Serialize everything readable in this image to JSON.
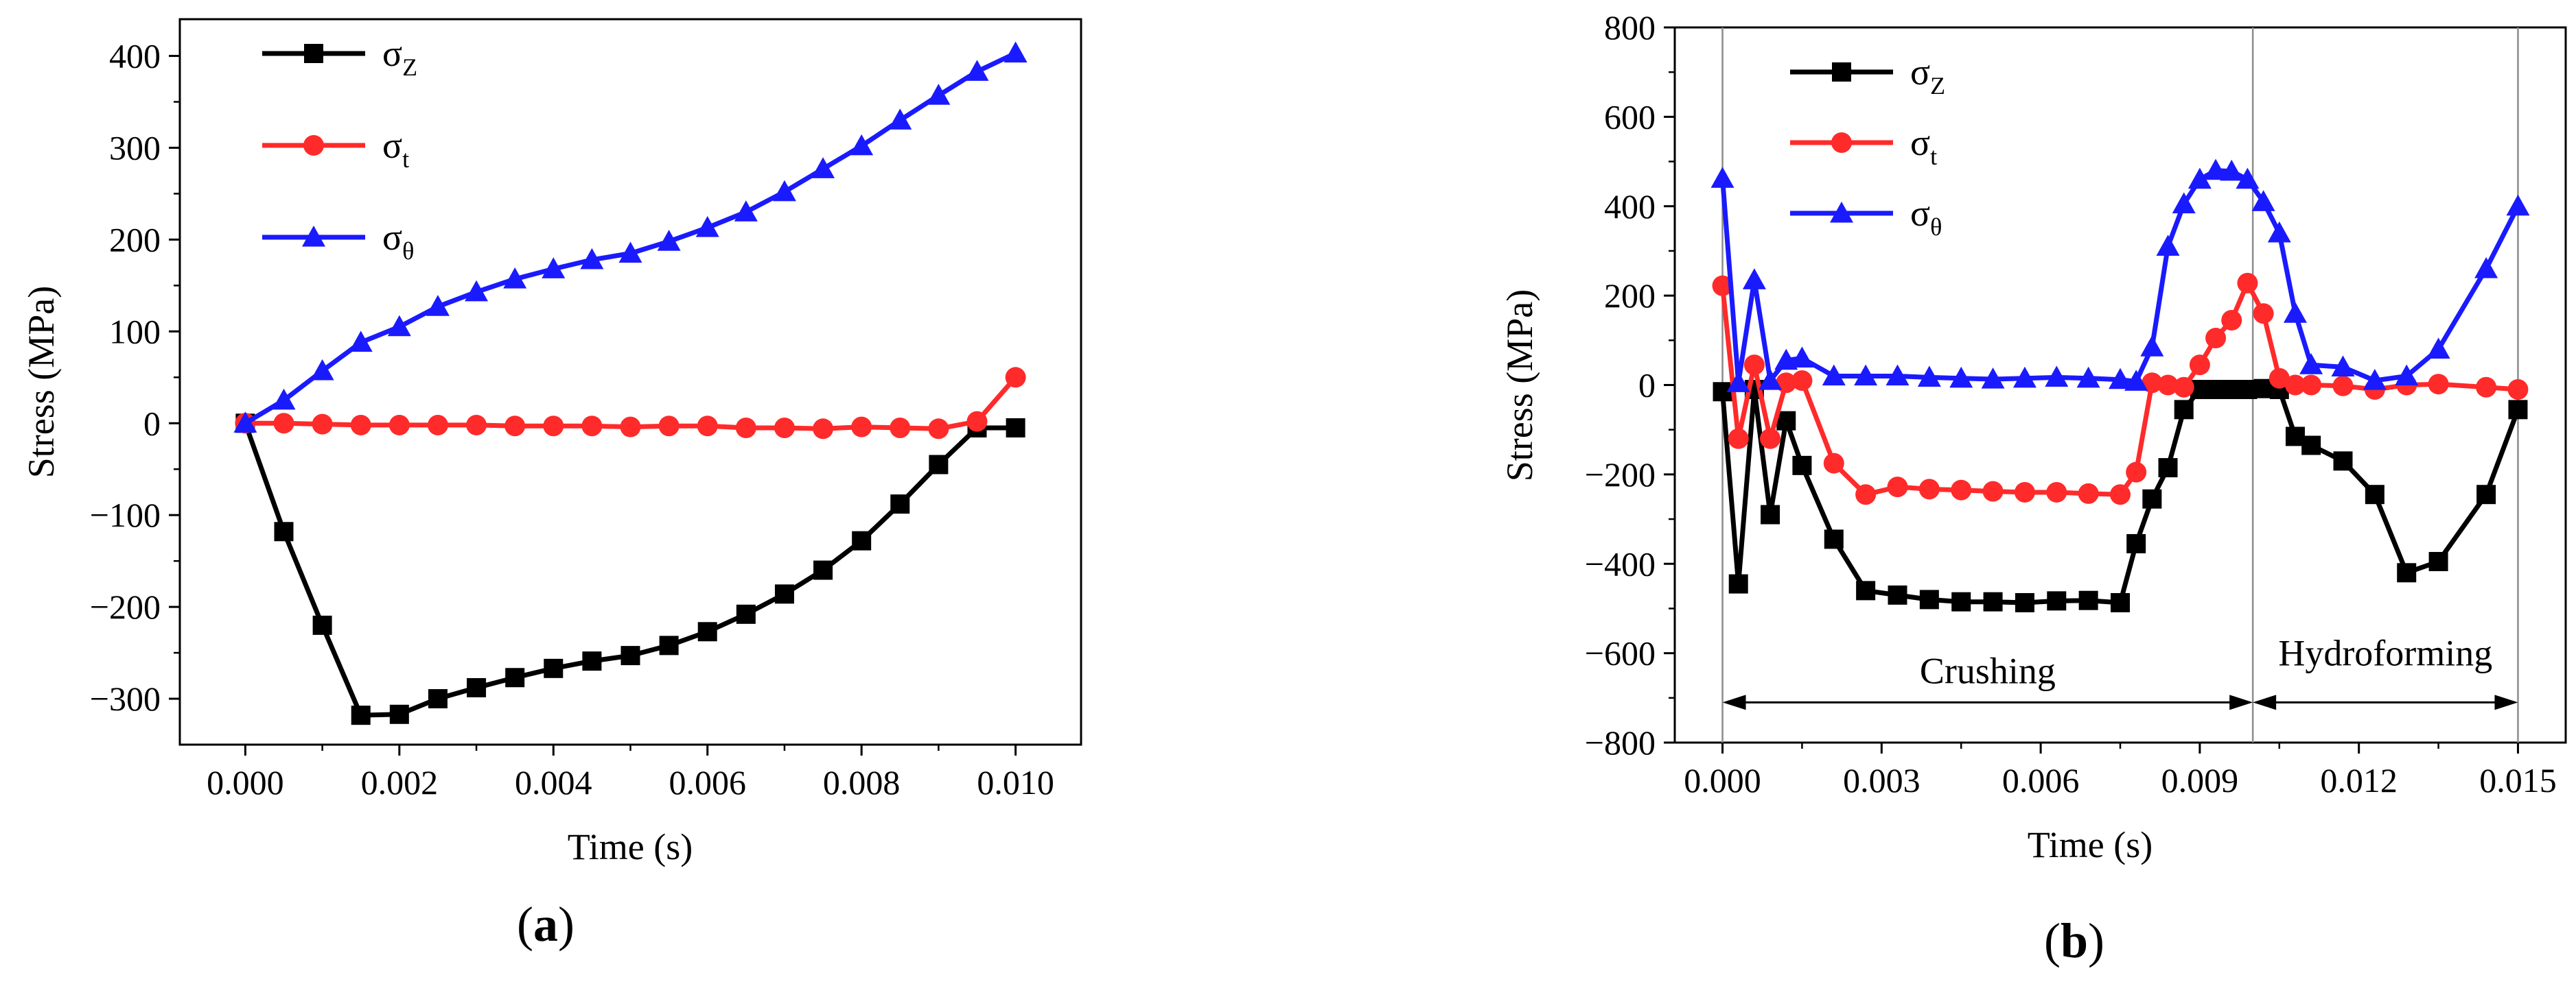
{
  "colors": {
    "sigma_z": "#000000",
    "sigma_t": "#ff2a2a",
    "sigma_theta": "#1a1aff",
    "axis": "#000000",
    "divider": "#8c8c8c"
  },
  "chart_data": [
    {
      "type": "line",
      "panel_label": "(a)",
      "panel_letter": "a",
      "xlabel": "Time (s)",
      "ylabel": "Stress (MPa)",
      "xlim": [
        -0.00085,
        0.01085
      ],
      "ylim": [
        -350,
        440
      ],
      "xticks": [
        0.0,
        0.002,
        0.004,
        0.006,
        0.008,
        0.01
      ],
      "xtick_labels": [
        "0.000",
        "0.002",
        "0.004",
        "0.006",
        "0.008",
        "0.010"
      ],
      "yticks": [
        -300,
        -200,
        -100,
        0,
        100,
        200,
        300,
        400
      ],
      "ytick_labels": [
        "−300",
        "−200",
        "−100",
        "0",
        "100",
        "200",
        "300",
        "400"
      ],
      "legend": [
        {
          "base": "σ",
          "sub": "Z",
          "series": "sigma_z"
        },
        {
          "base": "σ",
          "sub": "t",
          "series": "sigma_t"
        },
        {
          "base": "σ",
          "sub": "θ",
          "series": "sigma_theta"
        }
      ],
      "x": [
        0.0,
        0.0005,
        0.001,
        0.0015,
        0.002,
        0.0025,
        0.003,
        0.0035,
        0.004,
        0.0045,
        0.005,
        0.0055,
        0.006,
        0.0065,
        0.007,
        0.0075,
        0.008,
        0.0085,
        0.009,
        0.0095,
        0.01
      ],
      "series": [
        {
          "name": "σZ",
          "key": "sigma_z",
          "marker": "square",
          "values": [
            0,
            -118,
            -220,
            -318,
            -317,
            -300,
            -288,
            -277,
            -267,
            -259,
            -253,
            -242,
            -227,
            -208,
            -186,
            -160,
            -128,
            -88,
            -45,
            -5,
            -5
          ]
        },
        {
          "name": "σt",
          "key": "sigma_t",
          "marker": "circle",
          "values": [
            0,
            0,
            -1,
            -2,
            -2,
            -2,
            -2,
            -3,
            -3,
            -3,
            -4,
            -3,
            -3,
            -5,
            -5,
            -6,
            -4,
            -5,
            -6,
            2,
            50
          ]
        },
        {
          "name": "σθ",
          "key": "sigma_theta",
          "marker": "triangle",
          "values": [
            0,
            25,
            57,
            88,
            105,
            127,
            143,
            157,
            168,
            178,
            185,
            198,
            213,
            230,
            252,
            277,
            302,
            330,
            357,
            383,
            403
          ]
        }
      ]
    },
    {
      "type": "line",
      "panel_label": "(b)",
      "panel_letter": "b",
      "xlabel": "Time (s)",
      "ylabel": "Stress (MPa)",
      "xlim": [
        -0.0009,
        0.0159
      ],
      "ylim": [
        -800,
        800
      ],
      "xticks": [
        0.0,
        0.003,
        0.006,
        0.009,
        0.012,
        0.015
      ],
      "xtick_labels": [
        "0.000",
        "0.003",
        "0.006",
        "0.009",
        "0.012",
        "0.015"
      ],
      "yticks": [
        -800,
        -600,
        -400,
        -200,
        0,
        200,
        400,
        600,
        800
      ],
      "ytick_labels": [
        "−800",
        "−600",
        "−400",
        "−200",
        "0",
        "200",
        "400",
        "600",
        "800"
      ],
      "dividers": [
        0.0,
        0.01,
        0.015
      ],
      "annotations": [
        {
          "text": "Crushing",
          "x_from": 0.0,
          "x_to": 0.01,
          "y": -710,
          "label_y": -640
        },
        {
          "text": "Hydroforming",
          "x_from": 0.01,
          "x_to": 0.015,
          "y": -710,
          "label_y": -600
        }
      ],
      "legend": [
        {
          "base": "σ",
          "sub": "Z",
          "series": "sigma_z"
        },
        {
          "base": "σ",
          "sub": "t",
          "series": "sigma_t"
        },
        {
          "base": "σ",
          "sub": "θ",
          "series": "sigma_theta"
        }
      ],
      "series": [
        {
          "name": "σZ",
          "key": "sigma_z",
          "marker": "square",
          "x": [
            0.0,
            0.0003,
            0.0006,
            0.0009,
            0.0012,
            0.0015,
            0.0021,
            0.0027,
            0.0033,
            0.0039,
            0.0045,
            0.0051,
            0.0057,
            0.0063,
            0.0069,
            0.0075,
            0.0078,
            0.0081,
            0.0084,
            0.0087,
            0.009,
            0.0093,
            0.0096,
            0.0099,
            0.0102,
            0.0105,
            0.0108,
            0.0111,
            0.0117,
            0.0123,
            0.0129,
            0.0135,
            0.0144,
            0.015
          ],
          "values": [
            -15,
            -445,
            -10,
            -290,
            -80,
            -180,
            -345,
            -460,
            -470,
            -480,
            -485,
            -485,
            -487,
            -483,
            -482,
            -487,
            -355,
            -255,
            -185,
            -55,
            -10,
            -10,
            -10,
            -10,
            -8,
            -10,
            -115,
            -135,
            -170,
            -245,
            -420,
            -395,
            -245,
            -55
          ]
        },
        {
          "name": "σt",
          "key": "sigma_t",
          "marker": "circle",
          "x": [
            0.0,
            0.0003,
            0.0006,
            0.0009,
            0.0012,
            0.0015,
            0.0021,
            0.0027,
            0.0033,
            0.0039,
            0.0045,
            0.0051,
            0.0057,
            0.0063,
            0.0069,
            0.0075,
            0.0078,
            0.0081,
            0.0084,
            0.0087,
            0.009,
            0.0093,
            0.0096,
            0.0099,
            0.0102,
            0.0105,
            0.0108,
            0.0111,
            0.0117,
            0.0123,
            0.0129,
            0.0135,
            0.0144,
            0.015
          ],
          "values": [
            222,
            -120,
            45,
            -120,
            5,
            10,
            -175,
            -245,
            -228,
            -233,
            -235,
            -238,
            -240,
            -240,
            -243,
            -245,
            -195,
            5,
            0,
            -5,
            45,
            105,
            145,
            228,
            160,
            15,
            0,
            0,
            -2,
            -10,
            0,
            2,
            -5,
            -10
          ]
        },
        {
          "name": "σθ",
          "key": "sigma_theta",
          "marker": "triangle",
          "x": [
            0.0,
            0.0003,
            0.0006,
            0.0009,
            0.0012,
            0.0015,
            0.0021,
            0.0027,
            0.0033,
            0.0039,
            0.0045,
            0.0051,
            0.0057,
            0.0063,
            0.0069,
            0.0075,
            0.0078,
            0.0081,
            0.0084,
            0.0087,
            0.009,
            0.0093,
            0.0096,
            0.0099,
            0.0102,
            0.0105,
            0.0108,
            0.0111,
            0.0117,
            0.0123,
            0.0129,
            0.0135,
            0.0144,
            0.015
          ],
          "values": [
            462,
            5,
            235,
            10,
            55,
            60,
            20,
            20,
            20,
            17,
            15,
            13,
            15,
            17,
            15,
            12,
            8,
            85,
            310,
            405,
            460,
            480,
            478,
            460,
            410,
            340,
            160,
            45,
            40,
            10,
            20,
            80,
            260,
            400
          ]
        }
      ]
    }
  ]
}
